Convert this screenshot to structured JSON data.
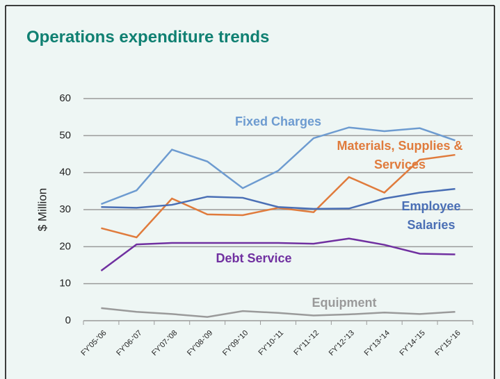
{
  "chart_data": {
    "type": "line",
    "title": "Operations expenditure trends",
    "y_label": "$ Million",
    "categories": [
      "FY'05-'06",
      "FY'06-'07",
      "FY'07-'08",
      "FY'08-'09",
      "FY'09-'10",
      "FY'10-'11",
      "FY'11-'12",
      "FY'12-'13",
      "FY'13-'14",
      "FY'14-'15",
      "FY'15-'16"
    ],
    "series": [
      {
        "name": "Fixed Charges",
        "color": "#6d9bd0",
        "values": [
          31.5,
          35.2,
          46.2,
          43.0,
          35.8,
          40.5,
          49.3,
          52.2,
          51.2,
          52.0,
          48.7
        ]
      },
      {
        "name": "Materials, Supplies & Services",
        "color": "#e07b3c",
        "values": [
          25.0,
          22.5,
          33.0,
          28.7,
          28.5,
          30.5,
          29.3,
          38.8,
          34.6,
          43.5,
          44.8
        ]
      },
      {
        "name": "Employee Salaries",
        "color": "#4a6fb5",
        "values": [
          30.7,
          30.5,
          31.3,
          33.5,
          33.2,
          30.7,
          30.2,
          30.3,
          33.0,
          34.6,
          35.6
        ]
      },
      {
        "name": "Debt Service",
        "color": "#7030a0",
        "values": [
          13.5,
          20.6,
          21.0,
          21.0,
          21.0,
          21.0,
          20.8,
          22.2,
          20.5,
          18.1,
          17.9
        ]
      },
      {
        "name": "Equipment",
        "color": "#9a9a9a",
        "values": [
          3.4,
          2.4,
          1.8,
          1.0,
          2.6,
          2.1,
          1.4,
          1.7,
          2.2,
          1.8,
          2.4
        ]
      }
    ],
    "ylim": [
      0,
      60
    ],
    "yticks": [
      0,
      10,
      20,
      30,
      40,
      50,
      60
    ],
    "grid": true
  }
}
